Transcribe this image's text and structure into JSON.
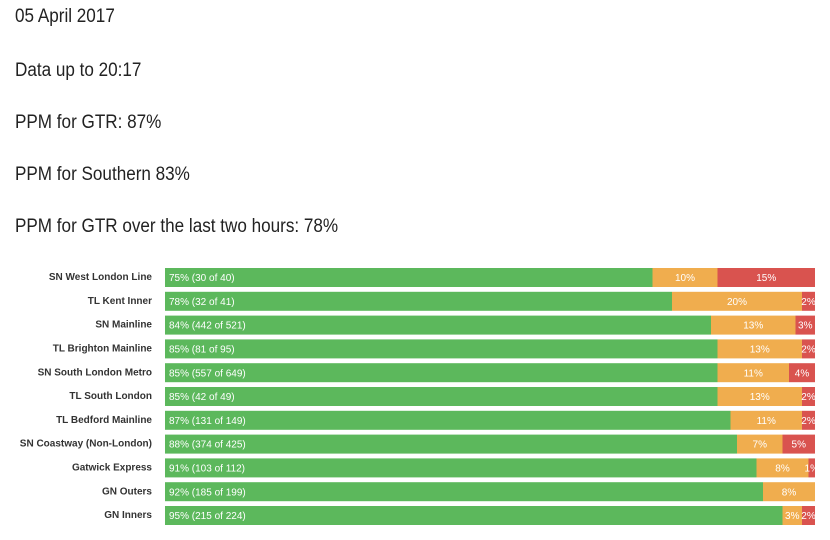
{
  "header": {
    "lines": [
      "05 April 2017",
      "Data up to 20:17",
      "PPM for GTR: 87%",
      "PPM for Southern 83%",
      "PPM for GTR over the last two hours: 78%"
    ]
  },
  "chart_data": {
    "type": "stacked-bar-horizontal",
    "categories": [
      "SN West London Line",
      "TL Kent Inner",
      "SN Mainline",
      "TL Brighton Mainline",
      "SN South London Metro",
      "TL South London",
      "TL Bedford Mainline",
      "SN Coastway (Non-London)",
      "Gatwick Express",
      "GN Outers",
      "GN Inners"
    ],
    "xlim": [
      0,
      100
    ],
    "series": [
      {
        "color": "#5cb85c",
        "values": [
          75,
          78,
          84,
          85,
          85,
          85,
          87,
          88,
          91,
          92,
          95
        ],
        "value_labels": [
          "75% (30 of 40)",
          "78% (32 of 41)",
          "84% (442 of 521)",
          "85% (81 of 95)",
          "85% (557 of 649)",
          "85% (42 of 49)",
          "87% (131 of 149)",
          "88% (374 of 425)",
          "91% (103 of 112)",
          "92% (185 of 199)",
          "95% (215 of 224)"
        ]
      },
      {
        "color": "#f0ad4e",
        "values": [
          10,
          20,
          13,
          13,
          11,
          13,
          11,
          7,
          8,
          8,
          3
        ],
        "value_labels": [
          "10%",
          "20%",
          "13%",
          "13%",
          "11%",
          "13%",
          "11%",
          "7%",
          "8%",
          "8%",
          "3%"
        ]
      },
      {
        "color": "#d9534f",
        "values": [
          15,
          2,
          3,
          2,
          4,
          2,
          2,
          5,
          1,
          null,
          2
        ],
        "value_labels": [
          "15%",
          "2%",
          "3%",
          "2%",
          "4%",
          "2%",
          "2%",
          "5%",
          "1%",
          null,
          "2%"
        ]
      }
    ]
  }
}
